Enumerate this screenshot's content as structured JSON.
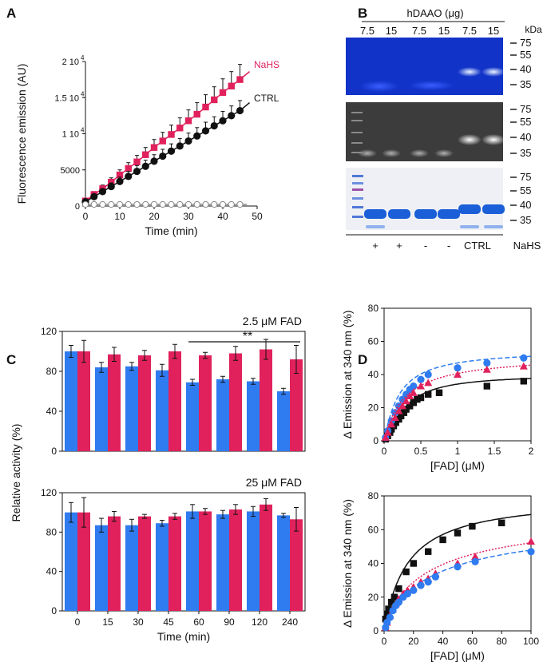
{
  "panel_letters": [
    "A",
    "B",
    "C",
    "D"
  ],
  "chart_data": [
    {
      "panel": "A",
      "type": "line",
      "xlabel": "Time (min)",
      "ylabel": "Fluorescence emission (AU)",
      "xlim": [
        0,
        50
      ],
      "ylim": [
        0,
        20000
      ],
      "xticks": [
        "0",
        "10",
        "20",
        "30",
        "40",
        "50"
      ],
      "yticks": [
        "0",
        "5000",
        "1 10",
        "1.5 10",
        "2 10"
      ],
      "ytick_exponent": "4",
      "series": [
        {
          "name": "NaHS",
          "color": "#e0215c",
          "marker": "square",
          "x": [
            0,
            2.5,
            5,
            7.5,
            10,
            12.5,
            15,
            17.5,
            20,
            22.5,
            25,
            27.5,
            30,
            32.5,
            35,
            37.5,
            40,
            42.5,
            45
          ],
          "y": [
            700,
            1600,
            2400,
            3300,
            4300,
            5200,
            6100,
            7100,
            8100,
            9000,
            9900,
            10800,
            11800,
            12700,
            13700,
            14700,
            15700,
            16600,
            17500
          ],
          "err": [
            300,
            400,
            500,
            600,
            700,
            800,
            900,
            1000,
            1100,
            1200,
            1300,
            1400,
            1500,
            1600,
            1700,
            1800,
            1900,
            2000,
            2100
          ]
        },
        {
          "name": "CTRL",
          "color": "#111111",
          "marker": "circle",
          "x": [
            0,
            2.5,
            5,
            7.5,
            10,
            12.5,
            15,
            17.5,
            20,
            22.5,
            25,
            27.5,
            30,
            32.5,
            35,
            37.5,
            40,
            42.5,
            45
          ],
          "y": [
            600,
            1300,
            2000,
            2700,
            3400,
            4100,
            4800,
            5500,
            6200,
            6900,
            7600,
            8300,
            9000,
            9700,
            10400,
            11100,
            11800,
            12500,
            13200
          ],
          "err": [
            200,
            300,
            400,
            500,
            600,
            700,
            800,
            850,
            900,
            950,
            1000,
            1050,
            1100,
            1150,
            1200,
            1250,
            1300,
            1350,
            1400
          ]
        },
        {
          "name": "",
          "color": "#888888",
          "marker": "open-circle",
          "x": [
            0,
            2.5,
            5,
            7.5,
            10,
            12.5,
            15,
            17.5,
            20,
            22.5,
            25,
            27.5,
            30,
            32.5,
            35,
            37.5,
            40,
            42.5,
            45
          ],
          "y": [
            0,
            0,
            0,
            0,
            0,
            0,
            0,
            0,
            0,
            0,
            0,
            0,
            0,
            0,
            0,
            0,
            0,
            0,
            0
          ],
          "err": []
        }
      ]
    },
    {
      "panel": "C-top",
      "type": "bar",
      "annotation": "2.5 μM FAD",
      "significance": "**",
      "ylabel": "Relative activity (%)",
      "ylim": [
        0,
        120
      ],
      "yticks": [
        "0",
        "40",
        "80",
        "120"
      ],
      "categories": [
        "0",
        "15",
        "30",
        "45",
        "60",
        "90",
        "120",
        "240"
      ],
      "series": [
        {
          "name": "CTRL",
          "color": "#2f7bf0",
          "values": [
            100,
            84,
            85,
            81,
            69,
            72,
            70,
            60
          ],
          "err": [
            6,
            5,
            4,
            6,
            3,
            3,
            3,
            3
          ]
        },
        {
          "name": "NaHS",
          "color": "#e0215c",
          "values": [
            100,
            97,
            96,
            100,
            96,
            98,
            102,
            92
          ],
          "err": [
            11,
            7,
            5,
            7,
            3,
            7,
            10,
            14
          ]
        }
      ]
    },
    {
      "panel": "C-bottom",
      "type": "bar",
      "annotation": "25 μM FAD",
      "xlabel": "Time (min)",
      "ylim": [
        0,
        120
      ],
      "yticks": [
        "0",
        "40",
        "80",
        "120"
      ],
      "categories": [
        "0",
        "15",
        "30",
        "45",
        "60",
        "90",
        "120",
        "240"
      ],
      "series": [
        {
          "name": "CTRL",
          "color": "#2f7bf0",
          "values": [
            100,
            87,
            87,
            89,
            101,
            98,
            101,
            97
          ],
          "err": [
            10,
            7,
            6,
            3,
            7,
            4,
            5,
            2
          ]
        },
        {
          "name": "NaHS",
          "color": "#e0215c",
          "values": [
            100,
            96,
            96,
            96,
            101,
            103,
            108,
            93
          ],
          "err": [
            15,
            5,
            2,
            3,
            3,
            5,
            6,
            12
          ]
        }
      ]
    },
    {
      "panel": "D-top",
      "type": "scatter",
      "ylabel": "Δ Emission at 340 nm (%)",
      "xlabel": "[FAD] (μM)",
      "xlim": [
        0,
        2
      ],
      "ylim": [
        0,
        80
      ],
      "xticks": [
        "0",
        "0.5",
        "1",
        "1.5",
        "2"
      ],
      "yticks": [
        "0",
        "20",
        "40",
        "60",
        "80"
      ],
      "series": [
        {
          "name": "black",
          "color": "#111111",
          "marker": "square",
          "line": "solid",
          "x": [
            0.02,
            0.05,
            0.08,
            0.1,
            0.13,
            0.16,
            0.2,
            0.23,
            0.27,
            0.3,
            0.35,
            0.4,
            0.45,
            0.5,
            0.6,
            0.75,
            1.4,
            1.9
          ],
          "y": [
            1,
            3,
            5,
            7,
            9,
            11,
            13,
            15,
            17,
            19,
            21,
            23,
            25,
            26,
            28,
            29,
            33,
            36
          ]
        },
        {
          "name": "blue",
          "color": "#2f7bf0",
          "marker": "circle",
          "line": "dashed",
          "x": [
            0.02,
            0.05,
            0.1,
            0.15,
            0.2,
            0.25,
            0.3,
            0.35,
            0.4,
            0.5,
            0.6,
            1.0,
            1.4,
            1.9
          ],
          "y": [
            2,
            6,
            12,
            17,
            21,
            25,
            28,
            31,
            33,
            37,
            40,
            44,
            47,
            50
          ]
        },
        {
          "name": "magenta",
          "color": "#e0215c",
          "marker": "triangle",
          "line": "dotted",
          "x": [
            0.02,
            0.05,
            0.1,
            0.15,
            0.2,
            0.25,
            0.3,
            0.35,
            0.4,
            0.5,
            0.6,
            1.0,
            1.4,
            1.9
          ],
          "y": [
            2,
            5,
            10,
            14,
            18,
            21,
            24,
            27,
            29,
            33,
            35,
            40,
            43,
            45
          ]
        }
      ]
    },
    {
      "panel": "D-bottom",
      "type": "scatter",
      "ylabel": "Δ Emission at 340 nm (%)",
      "xlabel": "[FAD] (μM)",
      "xlim": [
        0,
        100
      ],
      "ylim": [
        0,
        80
      ],
      "xticks": [
        "0",
        "20",
        "40",
        "60",
        "80",
        "100"
      ],
      "yticks": [
        "0",
        "20",
        "40",
        "60",
        "80"
      ],
      "series": [
        {
          "name": "black",
          "color": "#111111",
          "marker": "square",
          "line": "solid",
          "x": [
            1,
            2,
            3,
            5,
            7,
            10,
            15,
            20,
            30,
            40,
            50,
            60,
            80
          ],
          "y": [
            7,
            10,
            13,
            17,
            20,
            25,
            35,
            40,
            47,
            54,
            58,
            62,
            64
          ]
        },
        {
          "name": "magenta",
          "color": "#e0215c",
          "marker": "triangle",
          "line": "dotted",
          "x": [
            1,
            2,
            4,
            6,
            8,
            10,
            13,
            16,
            20,
            25,
            30,
            35,
            50,
            62,
            100
          ],
          "y": [
            2,
            5,
            9,
            13,
            16,
            19,
            22,
            24,
            26,
            29,
            31,
            34,
            40,
            44,
            53
          ]
        },
        {
          "name": "blue",
          "color": "#2f7bf0",
          "marker": "circle",
          "line": "dashed",
          "x": [
            1,
            2,
            4,
            6,
            8,
            10,
            13,
            16,
            20,
            25,
            30,
            35,
            50,
            62,
            100
          ],
          "y": [
            2,
            5,
            8,
            12,
            15,
            17,
            20,
            22,
            24,
            27,
            29,
            32,
            38,
            41,
            47
          ]
        }
      ]
    }
  ],
  "gel": {
    "title": "hDAAO (μg)",
    "amounts": [
      "7.5",
      "15",
      "7.5",
      "15",
      "7.5",
      "15"
    ],
    "kda_label": "kDa",
    "markers": [
      "75",
      "55",
      "40",
      "35"
    ],
    "treatment_labels": [
      "+",
      "+",
      "-",
      "-",
      "CTRL",
      "NaHS"
    ]
  }
}
